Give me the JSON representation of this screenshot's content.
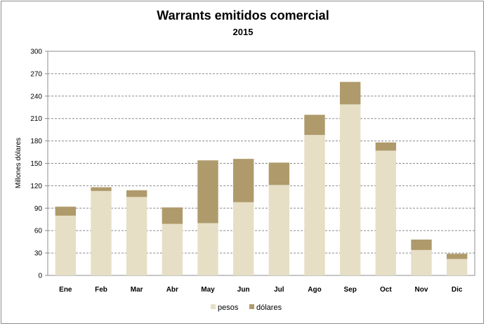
{
  "chart_data": {
    "type": "bar",
    "stacked": true,
    "title": "Warrants emitidos  comercial",
    "subtitle": "2015",
    "ylabel": "Millones dólares",
    "xlabel": "",
    "ylim": [
      0,
      300
    ],
    "yticks": [
      "0",
      "30",
      "60",
      "90",
      "120",
      "150",
      "180",
      "210",
      "240",
      "270",
      "300"
    ],
    "grid": true,
    "legend_position": "bottom",
    "categories": [
      "Ene",
      "Feb",
      "Mar",
      "Abr",
      "May",
      "Jun",
      "Jul",
      "Ago",
      "Sep",
      "Oct",
      "Nov",
      "Dic"
    ],
    "series": [
      {
        "name": "pesos",
        "color": "#e6dfc5",
        "values": [
          80,
          113,
          105,
          69,
          70,
          98,
          121,
          188,
          229,
          167,
          34,
          22
        ]
      },
      {
        "name": "dólares",
        "color": "#af9a6b",
        "values": [
          12,
          5,
          9,
          22,
          84,
          58,
          30,
          27,
          30,
          11,
          14,
          7
        ]
      }
    ]
  }
}
